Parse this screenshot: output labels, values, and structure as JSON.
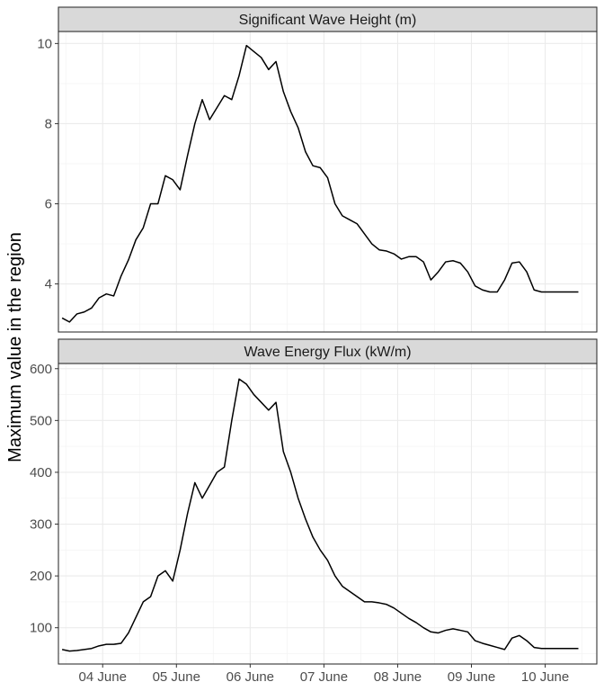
{
  "ylabel": "Maximum value in the region",
  "x_ticks": [
    "04 June",
    "05 June",
    "06 June",
    "07 June",
    "08 June",
    "09 June",
    "10 June"
  ],
  "colors": {
    "line": "#000000",
    "strip_fill": "#d9d9d9",
    "border": "#333333",
    "grid_major": "#ebebeb",
    "grid_minor": "#f4f4f4"
  },
  "chart_data": [
    {
      "type": "line",
      "title": "Significant Wave Height (m)",
      "ylim": [
        2.8,
        10.3
      ],
      "y_ticks": [
        4,
        6,
        8,
        10
      ],
      "x_units": "days from 04 June 00:00",
      "xlim": [
        -0.6,
        6.7
      ],
      "grid": true,
      "series": [
        {
          "x": [
            -0.55,
            -0.45,
            -0.35,
            -0.25,
            -0.15,
            -0.05,
            0.05,
            0.15,
            0.25,
            0.35,
            0.45,
            0.55,
            0.65,
            0.75,
            0.85,
            0.95,
            1.05,
            1.15,
            1.25,
            1.35,
            1.45,
            1.55,
            1.65,
            1.75,
            1.85,
            1.95,
            2.05,
            2.15,
            2.25,
            2.35,
            2.45,
            2.55,
            2.65,
            2.75,
            2.85,
            2.95,
            3.05,
            3.15,
            3.25,
            3.35,
            3.45,
            3.55,
            3.65,
            3.75,
            3.85,
            3.95,
            4.05,
            4.15,
            4.25,
            4.35,
            4.45,
            4.55,
            4.65,
            4.75,
            4.85,
            4.95,
            5.05,
            5.15,
            5.25,
            5.35,
            5.45,
            5.55,
            5.65,
            5.75,
            5.85,
            5.95,
            6.05,
            6.15,
            6.25,
            6.35,
            6.45
          ],
          "y": [
            3.15,
            3.05,
            3.25,
            3.3,
            3.4,
            3.65,
            3.75,
            3.7,
            4.2,
            4.6,
            5.1,
            5.4,
            6.0,
            6.0,
            6.7,
            6.6,
            6.35,
            7.2,
            8.0,
            8.6,
            8.1,
            8.4,
            8.7,
            8.6,
            9.2,
            9.95,
            9.8,
            9.65,
            9.35,
            9.55,
            8.8,
            8.3,
            7.9,
            7.3,
            6.95,
            6.9,
            6.65,
            6.0,
            5.7,
            5.6,
            5.5,
            5.25,
            5.0,
            4.85,
            4.82,
            4.75,
            4.62,
            4.68,
            4.68,
            4.55,
            4.1,
            4.3,
            4.55,
            4.58,
            4.52,
            4.3,
            3.95,
            3.85,
            3.8,
            3.8,
            4.1,
            4.52,
            4.55,
            4.3,
            3.85,
            3.8,
            3.8,
            3.8,
            3.8,
            3.8,
            3.8
          ]
        }
      ]
    },
    {
      "type": "line",
      "title": "Wave Energy Flux (kW/m)",
      "ylim": [
        30,
        610
      ],
      "y_ticks": [
        100,
        200,
        300,
        400,
        500,
        600
      ],
      "x_units": "days from 04 June 00:00",
      "xlim": [
        -0.6,
        6.7
      ],
      "grid": true,
      "series": [
        {
          "x": [
            -0.55,
            -0.45,
            -0.35,
            -0.25,
            -0.15,
            -0.05,
            0.05,
            0.15,
            0.25,
            0.35,
            0.45,
            0.55,
            0.65,
            0.75,
            0.85,
            0.95,
            1.05,
            1.15,
            1.25,
            1.35,
            1.45,
            1.55,
            1.65,
            1.75,
            1.85,
            1.95,
            2.05,
            2.15,
            2.25,
            2.35,
            2.45,
            2.55,
            2.65,
            2.75,
            2.85,
            2.95,
            3.05,
            3.15,
            3.25,
            3.35,
            3.45,
            3.55,
            3.65,
            3.75,
            3.85,
            3.95,
            4.05,
            4.15,
            4.25,
            4.35,
            4.45,
            4.55,
            4.65,
            4.75,
            4.85,
            4.95,
            5.05,
            5.15,
            5.25,
            5.35,
            5.45,
            5.55,
            5.65,
            5.75,
            5.85,
            5.95,
            6.05,
            6.15,
            6.25,
            6.35,
            6.45
          ],
          "y": [
            58,
            55,
            56,
            58,
            60,
            65,
            68,
            68,
            70,
            90,
            120,
            150,
            160,
            200,
            210,
            190,
            250,
            320,
            380,
            350,
            375,
            400,
            410,
            500,
            580,
            570,
            550,
            535,
            520,
            535,
            440,
            400,
            350,
            310,
            275,
            250,
            230,
            200,
            180,
            170,
            160,
            150,
            150,
            148,
            145,
            138,
            128,
            118,
            110,
            100,
            92,
            90,
            95,
            98,
            95,
            92,
            75,
            70,
            66,
            62,
            58,
            80,
            85,
            75,
            62,
            60,
            60,
            60,
            60,
            60,
            60
          ]
        }
      ]
    }
  ]
}
